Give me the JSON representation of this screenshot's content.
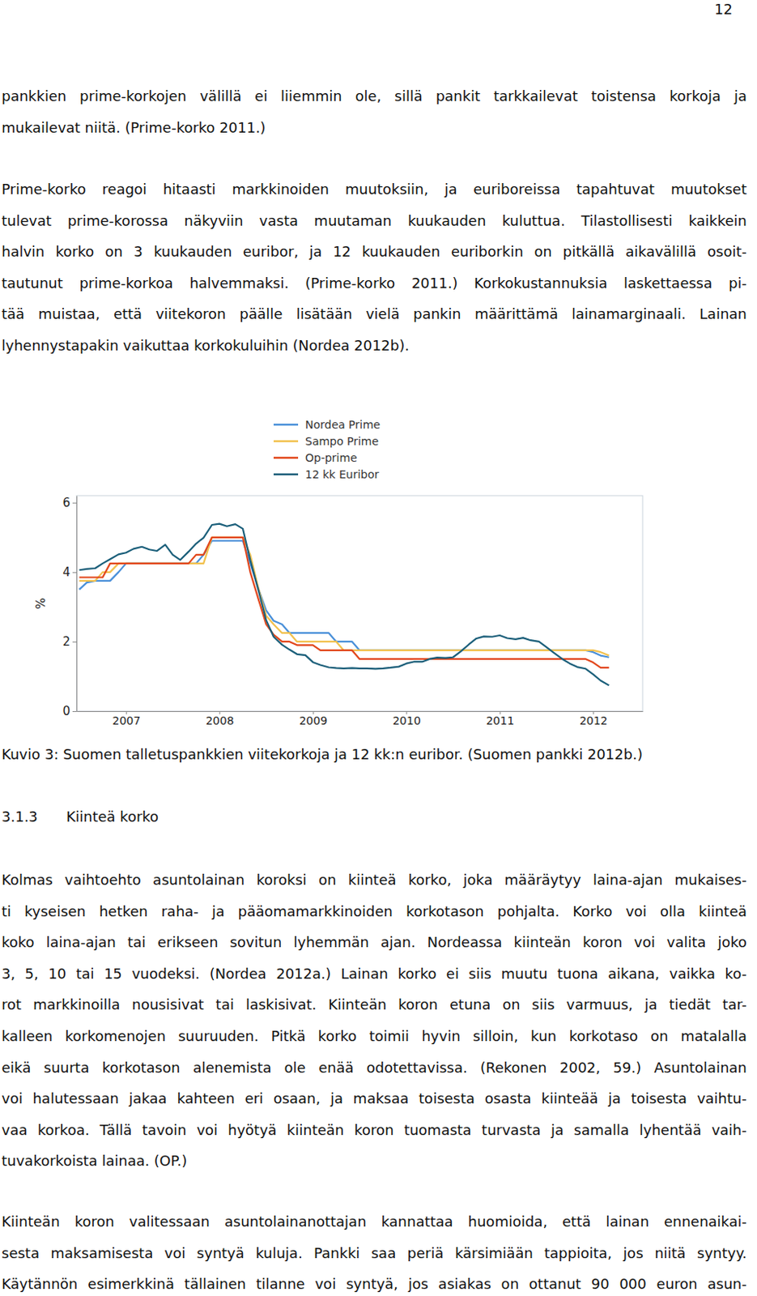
{
  "page_number": "12",
  "paragraphs_before": [
    {
      "lines": [
        "pankkien prime-korkojen välillä ei liiemmin ole, sillä pankit tarkkailevat toistensa korkoja ja",
        "mukailevat niitä. (Prime-korko 2011.)"
      ]
    },
    {
      "lines": [
        "Prime-korko reagoi hitaasti markkinoiden muutoksiin, ja euriboreissa tapahtuvat muutokset",
        "tulevat prime-korossa näkyviin vasta muutaman kuukauden kuluttua. Tilastollisesti kaikkein",
        "halvin korko on 3 kuukauden euribor, ja 12 kuukauden euriborkin on pitkällä aikavälillä osoit-",
        "tautunut prime-korkoa halvemmaksi. (Prime-korko 2011.) Korkokustannuksia laskettaessa pi-",
        "tää muistaa, että viitekoron päälle lisätään vielä pankin määrittämä lainamarginaali. Lainan",
        "lyhennystapakin vaikuttaa korkokuluihin (Nordea 2012b)."
      ]
    }
  ],
  "chart_data": {
    "type": "line",
    "y_label": "%",
    "x": [
      2007,
      2007.08,
      2007.17,
      2007.25,
      2007.33,
      2007.42,
      2007.5,
      2007.58,
      2007.67,
      2007.75,
      2007.83,
      2007.92,
      2008,
      2008.08,
      2008.17,
      2008.25,
      2008.33,
      2008.42,
      2008.5,
      2008.58,
      2008.67,
      2008.75,
      2008.83,
      2008.92,
      2009,
      2009.08,
      2009.17,
      2009.25,
      2009.33,
      2009.42,
      2009.5,
      2009.58,
      2009.67,
      2009.75,
      2009.83,
      2009.92,
      2010,
      2010.08,
      2010.17,
      2010.25,
      2010.33,
      2010.42,
      2010.5,
      2010.58,
      2010.67,
      2010.75,
      2010.83,
      2010.92,
      2011,
      2011.08,
      2011.17,
      2011.25,
      2011.33,
      2011.42,
      2011.5,
      2011.58,
      2011.67,
      2011.75,
      2011.83,
      2011.92,
      2012,
      2012.08,
      2012.17,
      2012.25,
      2012.33,
      2012.42,
      2012.5,
      2012.58,
      2012.67
    ],
    "xlim": [
      2006.97,
      2013.03
    ],
    "xticks": [
      {
        "value": 2007.5,
        "label": "2007"
      },
      {
        "value": 2008.5,
        "label": "2008"
      },
      {
        "value": 2009.5,
        "label": "2009"
      },
      {
        "value": 2010.5,
        "label": "2010"
      },
      {
        "value": 2011.5,
        "label": "2011"
      },
      {
        "value": 2012.5,
        "label": "2012"
      }
    ],
    "ylim": [
      0,
      6.2
    ],
    "yticks": [
      0,
      2,
      4,
      6
    ],
    "grid": false,
    "legend": "top",
    "series": [
      {
        "name": "Nordea Prime",
        "color": "#4a90d9",
        "values": [
          3.5,
          3.7,
          3.75,
          3.75,
          3.75,
          4.0,
          4.25,
          4.25,
          4.25,
          4.25,
          4.25,
          4.25,
          4.25,
          4.25,
          4.25,
          4.25,
          4.5,
          4.9,
          4.9,
          4.9,
          4.9,
          4.9,
          4.25,
          3.5,
          2.9,
          2.6,
          2.5,
          2.25,
          2.25,
          2.25,
          2.25,
          2.25,
          2.25,
          2.0,
          2.0,
          2.0,
          1.75,
          1.75,
          1.75,
          1.75,
          1.75,
          1.75,
          1.75,
          1.75,
          1.75,
          1.75,
          1.75,
          1.75,
          1.75,
          1.75,
          1.75,
          1.75,
          1.75,
          1.75,
          1.75,
          1.75,
          1.75,
          1.75,
          1.75,
          1.75,
          1.75,
          1.75,
          1.75,
          1.75,
          1.75,
          1.75,
          1.7,
          1.6,
          1.55
        ]
      },
      {
        "name": "Sampo Prime",
        "color": "#f2c14e",
        "values": [
          3.75,
          3.75,
          3.75,
          4.0,
          4.0,
          4.25,
          4.25,
          4.25,
          4.25,
          4.25,
          4.25,
          4.25,
          4.25,
          4.25,
          4.25,
          4.25,
          4.25,
          5.0,
          5.0,
          5.0,
          5.0,
          5.0,
          4.5,
          3.5,
          2.75,
          2.5,
          2.25,
          2.25,
          2.0,
          2.0,
          2.0,
          2.0,
          2.0,
          2.0,
          1.75,
          1.75,
          1.75,
          1.75,
          1.75,
          1.75,
          1.75,
          1.75,
          1.75,
          1.75,
          1.75,
          1.75,
          1.75,
          1.75,
          1.75,
          1.75,
          1.75,
          1.75,
          1.75,
          1.75,
          1.75,
          1.75,
          1.75,
          1.75,
          1.75,
          1.75,
          1.75,
          1.75,
          1.75,
          1.75,
          1.75,
          1.75,
          1.75,
          1.7,
          1.6
        ]
      },
      {
        "name": "Op-prime",
        "color": "#e2471b",
        "values": [
          3.85,
          3.85,
          3.85,
          3.85,
          4.25,
          4.25,
          4.25,
          4.25,
          4.25,
          4.25,
          4.25,
          4.25,
          4.25,
          4.25,
          4.25,
          4.5,
          4.5,
          5.0,
          5.0,
          5.0,
          5.0,
          5.0,
          4.0,
          3.2,
          2.5,
          2.2,
          2.0,
          2.0,
          1.9,
          1.9,
          1.9,
          1.75,
          1.75,
          1.75,
          1.75,
          1.75,
          1.5,
          1.5,
          1.5,
          1.5,
          1.5,
          1.5,
          1.5,
          1.5,
          1.5,
          1.5,
          1.5,
          1.5,
          1.5,
          1.5,
          1.5,
          1.5,
          1.5,
          1.5,
          1.5,
          1.5,
          1.5,
          1.5,
          1.5,
          1.5,
          1.5,
          1.5,
          1.5,
          1.5,
          1.5,
          1.5,
          1.4,
          1.25,
          1.25
        ]
      },
      {
        "name": "12 kk Euribor",
        "color": "#1b5f7a",
        "values": [
          4.06,
          4.09,
          4.11,
          4.25,
          4.37,
          4.51,
          4.56,
          4.67,
          4.73,
          4.65,
          4.61,
          4.79,
          4.5,
          4.35,
          4.59,
          4.82,
          4.99,
          5.36,
          5.39,
          5.32,
          5.38,
          5.25,
          4.35,
          3.45,
          2.62,
          2.14,
          1.91,
          1.77,
          1.64,
          1.61,
          1.41,
          1.33,
          1.26,
          1.24,
          1.23,
          1.24,
          1.23,
          1.23,
          1.22,
          1.23,
          1.25,
          1.28,
          1.37,
          1.42,
          1.42,
          1.5,
          1.54,
          1.53,
          1.55,
          1.71,
          1.92,
          2.09,
          2.15,
          2.14,
          2.18,
          2.1,
          2.07,
          2.11,
          2.04,
          2.0,
          1.84,
          1.68,
          1.5,
          1.37,
          1.27,
          1.22,
          1.06,
          0.88,
          0.74
        ]
      }
    ]
  },
  "caption": "Kuvio 3: Suomen talletuspankkien viitekorkoja ja 12 kk:n euribor. (Suomen pankki 2012b.)",
  "heading": {
    "number": "3.1.3",
    "title": "Kiinteä korko"
  },
  "paragraphs_after": [
    {
      "lines": [
        "Kolmas vaihtoehto asuntolainan koroksi on kiinteä korko, joka määräytyy laina-ajan mukaises-",
        "ti kyseisen hetken raha- ja pääomamarkkinoiden korkotason pohjalta. Korko voi olla kiinteä",
        "koko laina-ajan tai erikseen sovitun lyhemmän ajan. Nordeassa kiinteän koron voi valita joko",
        "3, 5, 10 tai 15 vuodeksi. (Nordea 2012a.) Lainan korko ei siis muutu tuona aikana, vaikka ko-",
        "rot markkinoilla nousisivat tai laskisivat. Kiinteän koron etuna on siis varmuus, ja tiedät tar-",
        "kalleen korkomenojen suuruuden. Pitkä korko toimii hyvin silloin, kun korkotaso on matalalla",
        "eikä suurta korkotason alenemista ole enää odotettavissa. (Rekonen 2002, 59.) Asuntolainan",
        "voi halutessaan jakaa kahteen eri osaan, ja maksaa toisesta osasta kiinteää ja toisesta vaihtu-",
        "vaa korkoa. Tällä tavoin voi hyötyä kiinteän koron tuomasta turvasta ja samalla lyhentää vaih-",
        "tuvakorkoista lainaa. (OP.)"
      ]
    },
    {
      "lines": [
        "Kiinteän koron valitessaan asuntolainanottajan kannattaa huomioida, että lainan ennenaikai-",
        "sesta maksamisesta voi syntyä kuluja. Pankki saa periä kärsimiään tappioita, jos niitä syntyy.",
        "Käytännön esimerkkinä tällainen tilanne voi syntyä, jos asiakas on ottanut 90 000 euron asun-"
      ]
    }
  ]
}
